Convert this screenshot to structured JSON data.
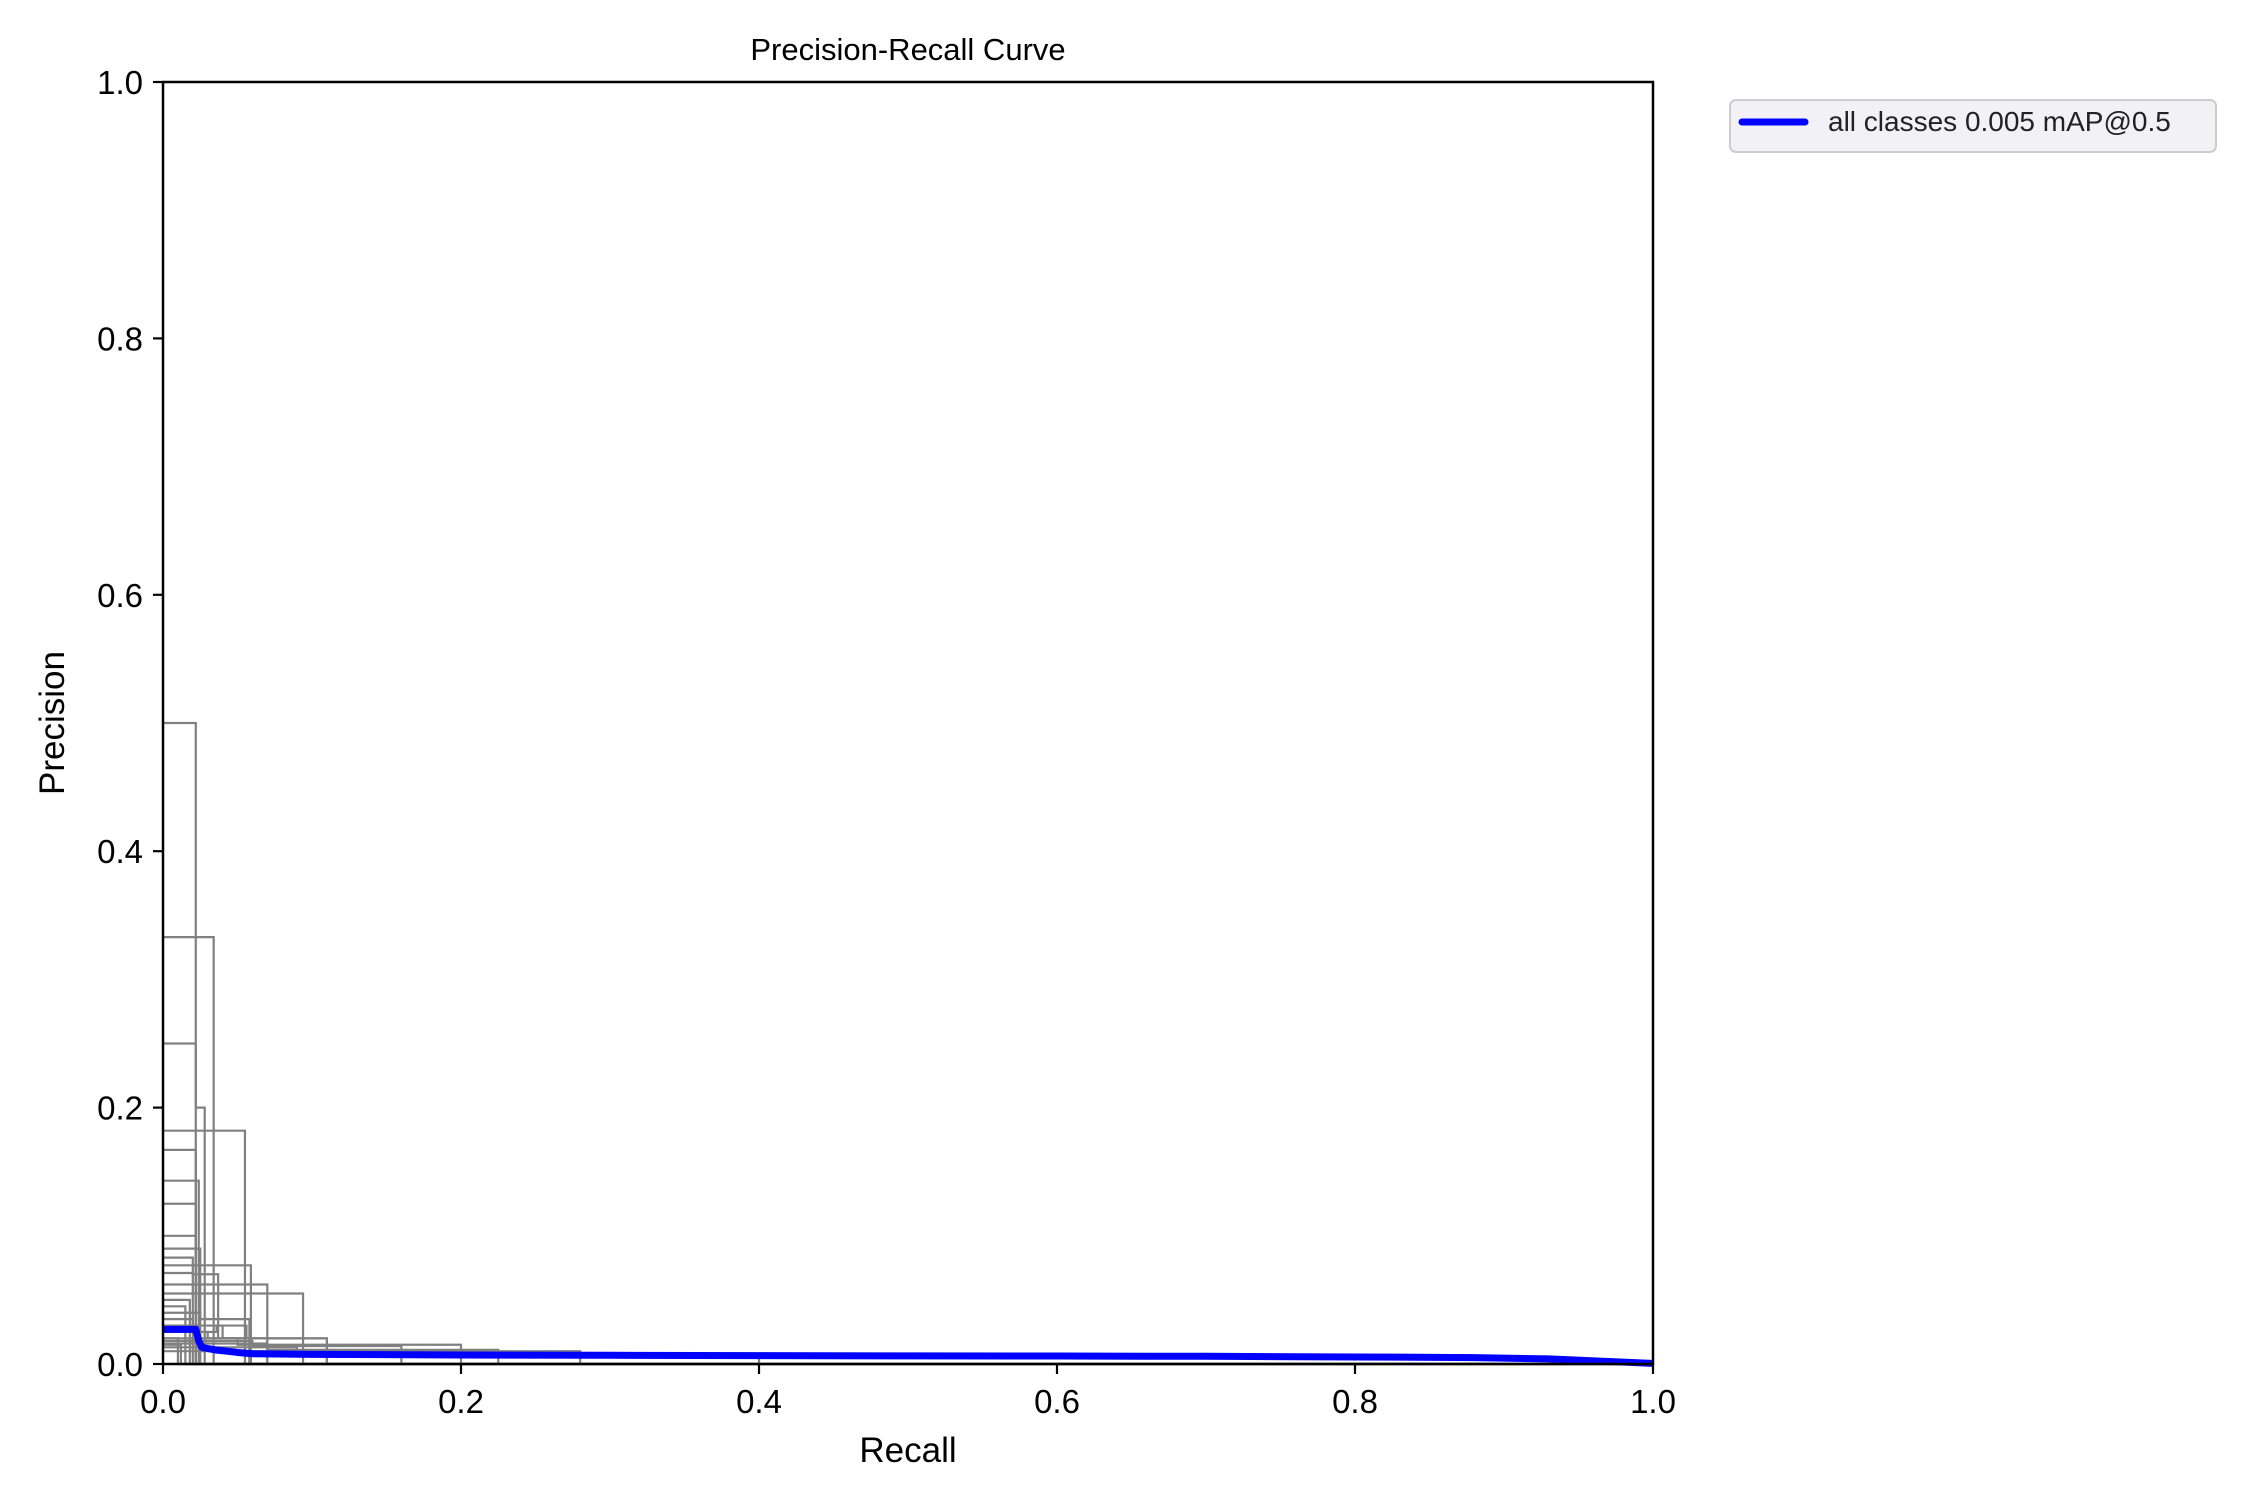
{
  "chart_data": {
    "type": "line",
    "title": "Precision-Recall Curve",
    "xlabel": "Recall",
    "ylabel": "Precision",
    "xlim": [
      0,
      1
    ],
    "ylim": [
      0,
      1
    ],
    "x_ticks": [
      "0.0",
      "0.2",
      "0.4",
      "0.6",
      "0.8",
      "1.0"
    ],
    "y_ticks": [
      "0.0",
      "0.2",
      "0.4",
      "0.6",
      "0.8",
      "1.0"
    ],
    "grid": false,
    "legend_position": "outside-top-right",
    "legend": [
      {
        "label": "all classes 0.005 mAP@0.5",
        "color": "#0000ff"
      }
    ],
    "class_color": "#808080",
    "mean_color": "#0000ff",
    "class_series": [
      {
        "x": [
          0,
          0.022,
          0.022,
          1
        ],
        "y": [
          0.5,
          0.5,
          0,
          0
        ]
      },
      {
        "x": [
          0,
          0.034,
          0.034,
          1
        ],
        "y": [
          0.333,
          0.333,
          0,
          0
        ]
      },
      {
        "x": [
          0,
          0.022,
          0.022,
          0.028,
          0.028,
          1
        ],
        "y": [
          0.25,
          0.25,
          0.2,
          0.2,
          0,
          0
        ]
      },
      {
        "x": [
          0,
          0.034,
          0.034,
          0.055,
          0.055,
          1
        ],
        "y": [
          0.182,
          0.182,
          0.182,
          0.182,
          0,
          0
        ]
      },
      {
        "x": [
          0,
          0.022,
          0.022,
          1
        ],
        "y": [
          0.167,
          0.167,
          0,
          0
        ]
      },
      {
        "x": [
          0,
          0.024,
          0.024,
          1
        ],
        "y": [
          0.143,
          0.143,
          0,
          0
        ]
      },
      {
        "x": [
          0,
          0.022,
          0.022,
          1
        ],
        "y": [
          0.125,
          0.125,
          0,
          0
        ]
      },
      {
        "x": [
          0,
          0.022,
          0.022,
          1
        ],
        "y": [
          0.1,
          0.1,
          0,
          0
        ]
      },
      {
        "x": [
          0,
          0.025,
          0.025,
          1
        ],
        "y": [
          0.09,
          0.09,
          0,
          0
        ]
      },
      {
        "x": [
          0,
          0.02,
          0.02,
          1
        ],
        "y": [
          0.083,
          0.083,
          0,
          0
        ]
      },
      {
        "x": [
          0,
          0.03,
          0.03,
          0.059,
          0.059,
          1
        ],
        "y": [
          0.077,
          0.077,
          0.077,
          0.077,
          0,
          0
        ]
      },
      {
        "x": [
          0,
          0.02,
          0.02,
          0.037,
          0.037,
          0.058,
          0.058,
          1
        ],
        "y": [
          0.071,
          0.071,
          0.07,
          0.07,
          0.02,
          0.02,
          0,
          0
        ]
      },
      {
        "x": [
          0,
          0.028,
          0.028,
          0.07,
          0.07,
          1
        ],
        "y": [
          0.062,
          0.062,
          0.062,
          0.062,
          0,
          0
        ]
      },
      {
        "x": [
          0,
          0.045,
          0.045,
          0.074,
          0.074,
          0.094,
          0.094,
          1
        ],
        "y": [
          0.055,
          0.055,
          0.055,
          0.055,
          0.055,
          0.055,
          0,
          0
        ]
      },
      {
        "x": [
          0,
          0.025,
          0.025,
          0.058,
          0.058,
          1
        ],
        "y": [
          0.04,
          0.04,
          0.035,
          0.035,
          0,
          0
        ]
      },
      {
        "x": [
          0,
          0.02,
          0.02,
          0.036,
          0.036,
          0.056,
          0.056,
          0.07,
          0.07,
          1
        ],
        "y": [
          0.035,
          0.035,
          0.025,
          0.025,
          0.03,
          0.03,
          0.02,
          0.02,
          0,
          0
        ]
      },
      {
        "x": [
          0,
          0.03,
          0.03,
          0.097,
          0.097,
          0.11,
          0.11,
          1
        ],
        "y": [
          0.025,
          0.025,
          0.02,
          0.02,
          0.02,
          0.02,
          0,
          0
        ]
      },
      {
        "x": [
          0,
          0.04,
          0.04,
          0.11,
          0.11,
          1
        ],
        "y": [
          0.03,
          0.03,
          0.02,
          0.02,
          0,
          0
        ]
      },
      {
        "x": [
          0,
          0.05,
          0.05,
          0.2,
          0.2,
          1
        ],
        "y": [
          0.02,
          0.02,
          0.015,
          0.015,
          0,
          0
        ]
      },
      {
        "x": [
          0,
          0.06,
          0.06,
          0.16,
          0.16,
          1
        ],
        "y": [
          0.018,
          0.018,
          0.014,
          0.014,
          0,
          0
        ]
      },
      {
        "x": [
          0,
          0.07,
          0.07,
          0.225,
          0.225,
          1
        ],
        "y": [
          0.016,
          0.016,
          0.011,
          0.011,
          0,
          0
        ]
      },
      {
        "x": [
          0,
          0.09,
          0.09,
          0.28,
          0.28,
          1
        ],
        "y": [
          0.013,
          0.013,
          0.01,
          0.01,
          0,
          0
        ]
      },
      {
        "x": [
          0,
          0.2,
          0.2,
          0.4,
          0.4,
          1
        ],
        "y": [
          0.01,
          0.01,
          0.007,
          0.007,
          0,
          0
        ]
      },
      {
        "x": [
          0,
          0.01,
          0.01,
          1
        ],
        "y": [
          0.02,
          0.02,
          0,
          0
        ]
      },
      {
        "x": [
          0,
          0.012,
          0.012,
          1
        ],
        "y": [
          0.015,
          0.015,
          0,
          0
        ]
      },
      {
        "x": [
          0,
          0.015,
          0.015,
          1
        ],
        "y": [
          0.045,
          0.045,
          0,
          0
        ]
      },
      {
        "x": [
          0,
          0.018,
          0.018,
          1
        ],
        "y": [
          0.05,
          0.05,
          0,
          0
        ]
      }
    ],
    "mean_series": {
      "name": "all classes 0.005 mAP@0.5",
      "x": [
        0,
        0.022,
        0.024,
        0.026,
        0.035,
        0.05,
        0.06,
        0.1,
        0.2,
        0.3,
        0.4,
        0.5,
        0.6,
        0.7,
        0.8,
        0.88,
        0.93,
        0.97,
        1.0
      ],
      "y": [
        0.027,
        0.027,
        0.018,
        0.013,
        0.011,
        0.009,
        0.008,
        0.0075,
        0.007,
        0.0068,
        0.0065,
        0.0063,
        0.0062,
        0.006,
        0.0055,
        0.005,
        0.004,
        0.002,
        0.0005
      ]
    }
  }
}
